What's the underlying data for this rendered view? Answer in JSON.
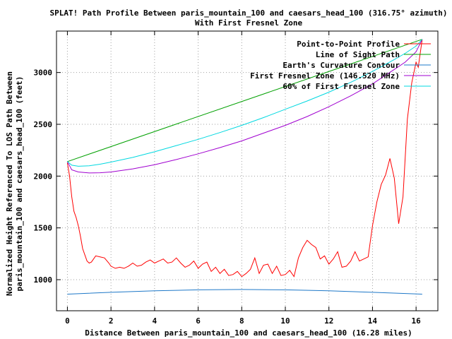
{
  "chart_data": {
    "type": "line",
    "title": "SPLAT! Path Profile Between paris_mountain_100 and caesars_head_100 (316.75° azimuth)",
    "subtitle": "With First Fresnel Zone",
    "xlabel": "Distance Between paris_mountain_100 and caesars_head_100 (16.28 miles)",
    "ylabel": "Normalized Height Referenced To LOS Path Between",
    "ylabel2": "paris_mountain_100 and caesars_head_100 (feet)",
    "xlim": [
      -0.5,
      17
    ],
    "ylim": [
      700,
      3400
    ],
    "x_ticks": [
      0,
      2,
      4,
      6,
      8,
      10,
      12,
      14,
      16
    ],
    "y_ticks": [
      1000,
      1500,
      2000,
      2500,
      3000
    ],
    "grid": true,
    "legend_position": "top-right",
    "series": [
      {
        "name": "Point-to-Point Profile",
        "color": "#ff0000",
        "x": [
          0,
          0.1,
          0.2,
          0.3,
          0.4,
          0.5,
          0.6,
          0.7,
          0.8,
          0.9,
          1.0,
          1.1,
          1.2,
          1.3,
          1.5,
          1.7,
          1.9,
          2.0,
          2.2,
          2.4,
          2.6,
          2.8,
          3.0,
          3.2,
          3.4,
          3.6,
          3.8,
          4.0,
          4.2,
          4.4,
          4.6,
          4.8,
          5.0,
          5.2,
          5.4,
          5.6,
          5.8,
          6.0,
          6.2,
          6.4,
          6.6,
          6.8,
          7.0,
          7.2,
          7.4,
          7.6,
          7.8,
          8.0,
          8.2,
          8.4,
          8.6,
          8.8,
          9.0,
          9.2,
          9.4,
          9.6,
          9.8,
          10.0,
          10.2,
          10.4,
          10.6,
          10.8,
          11.0,
          11.2,
          11.4,
          11.6,
          11.8,
          12.0,
          12.2,
          12.4,
          12.6,
          12.8,
          13.0,
          13.2,
          13.4,
          13.6,
          13.8,
          14.0,
          14.2,
          14.4,
          14.6,
          14.8,
          15.0,
          15.2,
          15.4,
          15.6,
          15.8,
          16.0,
          16.1,
          16.2,
          16.28
        ],
        "y": [
          2130,
          2000,
          1800,
          1660,
          1600,
          1520,
          1420,
          1300,
          1240,
          1180,
          1160,
          1170,
          1200,
          1230,
          1220,
          1210,
          1160,
          1130,
          1110,
          1120,
          1110,
          1130,
          1160,
          1130,
          1140,
          1170,
          1190,
          1160,
          1180,
          1200,
          1160,
          1170,
          1210,
          1160,
          1120,
          1140,
          1180,
          1110,
          1150,
          1170,
          1080,
          1120,
          1060,
          1100,
          1040,
          1050,
          1080,
          1030,
          1060,
          1100,
          1210,
          1060,
          1140,
          1150,
          1060,
          1130,
          1040,
          1050,
          1090,
          1030,
          1210,
          1310,
          1380,
          1340,
          1310,
          1200,
          1230,
          1150,
          1200,
          1270,
          1120,
          1130,
          1180,
          1270,
          1180,
          1200,
          1220,
          1520,
          1750,
          1920,
          2010,
          2170,
          1980,
          1540,
          1800,
          2550,
          2900,
          3100,
          3050,
          3200,
          3320
        ]
      },
      {
        "name": "Line of Sight Path",
        "color": "#00a000",
        "x": [
          0,
          16.28
        ],
        "y": [
          2140,
          3320
        ]
      },
      {
        "name": "Earth's Curvature Contour",
        "color": "#1e78c8",
        "x": [
          0,
          2,
          4,
          6,
          8,
          10,
          12,
          14,
          16.28
        ],
        "y": [
          860,
          878,
          893,
          902,
          905,
          902,
          893,
          878,
          860
        ]
      },
      {
        "name": "First Fresnel Zone (146.520 MHz)",
        "color": "#a000d0",
        "x": [
          0,
          0.2,
          0.5,
          1,
          1.5,
          2,
          3,
          4,
          5,
          6,
          7,
          8,
          9,
          10,
          11,
          12,
          13,
          14,
          15,
          15.5,
          16,
          16.28
        ],
        "y": [
          2140,
          2060,
          2040,
          2030,
          2032,
          2040,
          2070,
          2110,
          2160,
          2215,
          2275,
          2340,
          2415,
          2490,
          2575,
          2670,
          2775,
          2890,
          3030,
          3100,
          3200,
          3320
        ]
      },
      {
        "name": "60% of First Fresnel Zone",
        "color": "#00d8e0",
        "x": [
          0,
          0.2,
          0.5,
          1,
          1.5,
          2,
          3,
          4,
          5,
          6,
          7,
          8,
          9,
          10,
          11,
          12,
          13,
          14,
          15,
          15.5,
          16,
          16.28
        ],
        "y": [
          2140,
          2105,
          2095,
          2100,
          2115,
          2135,
          2180,
          2235,
          2295,
          2355,
          2420,
          2490,
          2565,
          2645,
          2725,
          2810,
          2905,
          3010,
          3125,
          3185,
          3255,
          3320
        ]
      }
    ]
  }
}
